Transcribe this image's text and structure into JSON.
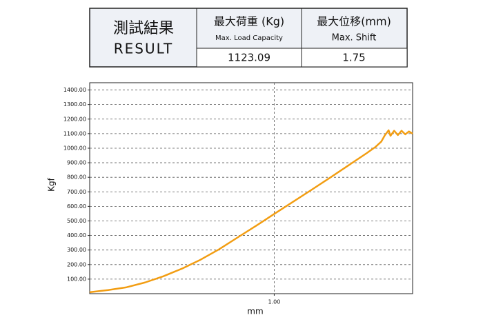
{
  "result": {
    "label_zh": "測試結果",
    "label_en": "RESULT",
    "columns": [
      {
        "zh": "最大荷重 (Kg)",
        "en": "Max. Load Capacity",
        "value": 1123.09
      },
      {
        "zh": "最大位移(mm)",
        "en": "Max. Shift",
        "value": 1.75
      }
    ]
  },
  "chart_data": {
    "type": "line",
    "x_label": "mm",
    "y_label": "Kgf",
    "x": [
      0,
      0.1,
      0.2,
      0.3,
      0.4,
      0.5,
      0.6,
      0.7,
      0.8,
      0.9,
      1.0,
      1.1,
      1.2,
      1.3,
      1.4,
      1.5,
      1.55,
      1.58,
      1.6,
      1.62,
      1.63,
      1.65,
      1.67,
      1.69,
      1.71,
      1.73,
      1.75
    ],
    "series": [
      {
        "color": "#f29d12",
        "values": [
          10,
          25,
          44,
          77,
          120,
          172,
          233,
          304,
          385,
          465,
          548,
          630,
          712,
          795,
          880,
          965,
          1010,
          1045,
          1090,
          1123,
          1085,
          1120,
          1090,
          1120,
          1095,
          1115,
          1100
        ]
      }
    ],
    "xlim": [
      0,
      1.75
    ],
    "xticks": [
      {
        "value": 1,
        "label": "1.00"
      }
    ],
    "ylim": [
      0,
      1450
    ],
    "yticks": [
      {
        "value": 100,
        "label": "100.00"
      },
      {
        "value": 200,
        "label": "200.00"
      },
      {
        "value": 300,
        "label": "300.00"
      },
      {
        "value": 400,
        "label": "400.00"
      },
      {
        "value": 500,
        "label": "500.00"
      },
      {
        "value": 600,
        "label": "600.00"
      },
      {
        "value": 700,
        "label": "700.00"
      },
      {
        "value": 800,
        "label": "800.00"
      },
      {
        "value": 900,
        "label": "900.00"
      },
      {
        "value": 1000,
        "label": "1000.00"
      },
      {
        "value": 1100,
        "label": "1100.00"
      },
      {
        "value": 1200,
        "label": "1200.00"
      },
      {
        "value": 1300,
        "label": "1300.00"
      },
      {
        "value": 1400,
        "label": "1400.00"
      }
    ],
    "grid": true
  }
}
